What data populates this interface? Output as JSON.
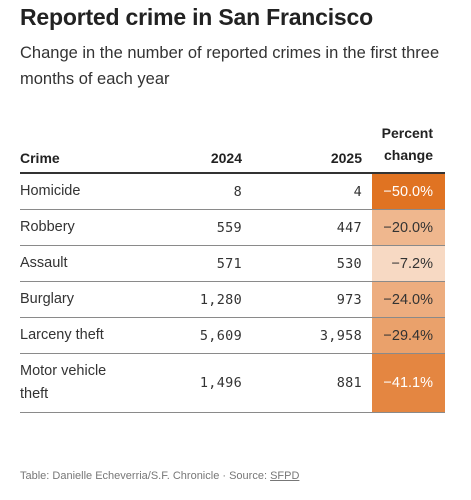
{
  "header": {
    "title": "Reported crime in San Francisco",
    "subtitle": "Change in the number of reported crimes in the first three months of each year"
  },
  "chart_data": {
    "type": "table",
    "columns": {
      "crime": "Crime",
      "y1": "2024",
      "y2": "2025",
      "pct_line1": "Percent",
      "pct_line2": "change"
    },
    "rows": [
      {
        "crime": "Homicide",
        "y2024": "8",
        "y2025": "4",
        "pct": "−50.0%",
        "value": -50.0
      },
      {
        "crime": "Robbery",
        "y2024": "559",
        "y2025": "447",
        "pct": "−20.0%",
        "value": -20.0
      },
      {
        "crime": "Assault",
        "y2024": "571",
        "y2025": "530",
        "pct": "−7.2%",
        "value": -7.2
      },
      {
        "crime": "Burglary",
        "y2024": "1,280",
        "y2025": "973",
        "pct": "−24.0%",
        "value": -24.0
      },
      {
        "crime": "Larceny theft",
        "y2024": "5,609",
        "y2025": "3,958",
        "pct": "−29.4%",
        "value": -29.4
      },
      {
        "crime": "Motor vehicle theft",
        "y2024": "1,496",
        "y2025": "881",
        "pct": "−41.1%",
        "value": -41.1
      }
    ],
    "color_scale": {
      "light": "#fcf1ea",
      "dark": "#e07322",
      "max_abs": 50
    }
  },
  "footer": {
    "credit": "Table: Danielle Echeverria/S.F. Chronicle · Source: ",
    "source": "SFPD"
  }
}
